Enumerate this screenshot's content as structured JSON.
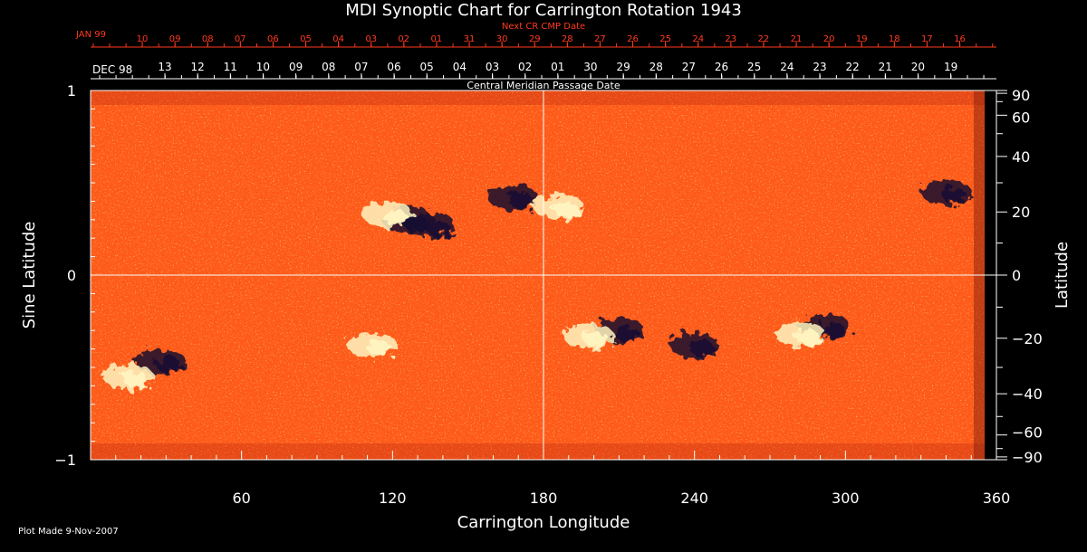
{
  "chart_data": {
    "type": "heatmap",
    "title": "MDI Synoptic Chart for Carrington Rotation 1943",
    "xlabel": "Carrington Longitude",
    "ylabel_left": "Sine Latitude",
    "ylabel_right": "Latitude",
    "xlim": [
      0,
      360
    ],
    "ylim": [
      -1,
      1
    ],
    "x_ticks": [
      60,
      120,
      180,
      240,
      300,
      360
    ],
    "y_ticks_left": [
      {
        "value": 1,
        "label": "1"
      },
      {
        "value": 0,
        "label": "0"
      },
      {
        "value": -1,
        "label": "−1"
      }
    ],
    "y_ticks_right": [
      "90",
      "60",
      "40",
      "20",
      "0",
      "−20",
      "−40",
      "−60",
      "−90"
    ],
    "top_axis_red": {
      "title": "Next CR CMP Date",
      "start_label": "JAN 99",
      "labels": [
        "10",
        "09",
        "08",
        "07",
        "06",
        "05",
        "04",
        "03",
        "02",
        "01",
        "31",
        "30",
        "29",
        "28",
        "27",
        "26",
        "25",
        "24",
        "23",
        "22",
        "21",
        "20",
        "19",
        "18",
        "17",
        "16"
      ]
    },
    "top_axis_white": {
      "title": "Central Meridian Passage Date",
      "start_label": "DEC 98",
      "labels": [
        "13",
        "12",
        "11",
        "10",
        "09",
        "08",
        "07",
        "06",
        "05",
        "04",
        "03",
        "02",
        "01",
        "30",
        "29",
        "28",
        "27",
        "26",
        "25",
        "24",
        "23",
        "22",
        "21",
        "20",
        "19"
      ]
    },
    "crosshair": {
      "x": 180,
      "y": 0
    },
    "active_regions": [
      {
        "lon": 126,
        "sinlat": 0.3,
        "polarity": "negative"
      },
      {
        "lon": 118,
        "sinlat": 0.33,
        "polarity": "positive"
      },
      {
        "lon": 168,
        "sinlat": 0.42,
        "polarity": "negative"
      },
      {
        "lon": 186,
        "sinlat": 0.37,
        "polarity": "positive"
      },
      {
        "lon": 135,
        "sinlat": 0.27,
        "polarity": "negative"
      },
      {
        "lon": 28,
        "sinlat": -0.47,
        "polarity": "negative"
      },
      {
        "lon": 15,
        "sinlat": -0.55,
        "polarity": "positive"
      },
      {
        "lon": 210,
        "sinlat": -0.3,
        "polarity": "negative"
      },
      {
        "lon": 198,
        "sinlat": -0.33,
        "polarity": "positive"
      },
      {
        "lon": 240,
        "sinlat": -0.38,
        "polarity": "negative"
      },
      {
        "lon": 292,
        "sinlat": -0.28,
        "polarity": "negative"
      },
      {
        "lon": 282,
        "sinlat": -0.32,
        "polarity": "positive"
      },
      {
        "lon": 112,
        "sinlat": -0.38,
        "polarity": "positive"
      },
      {
        "lon": 340,
        "sinlat": 0.45,
        "polarity": "negative"
      }
    ]
  },
  "footer": {
    "plot_made": "Plot Made  9-Nov-2007"
  },
  "colors": {
    "background": "#000000",
    "field_base": "#ff5a1a",
    "positive": "#fff4c0",
    "negative": "#1a1030",
    "red_axis": "#ff3a1e",
    "axis": "#ffffff"
  }
}
